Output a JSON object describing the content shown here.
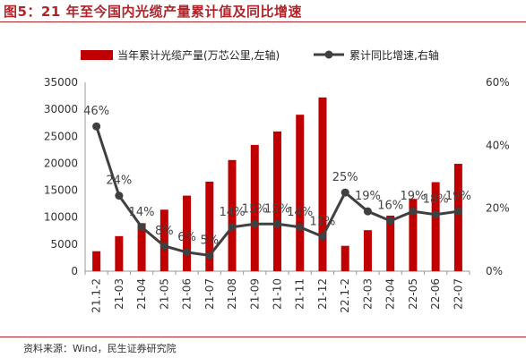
{
  "figure": {
    "title": "图5：21 年至今国内光缆产量累计值及同比增速",
    "source": "资料来源：Wind，民生证券研究院"
  },
  "colors": {
    "bar": "#c00000",
    "line": "#404040",
    "title": "#b0242a"
  },
  "chart_data": {
    "type": "bar",
    "categories": [
      "21.1-2",
      "21-03",
      "21-04",
      "21-05",
      "21-06",
      "21-07",
      "21-08",
      "21-09",
      "21-10",
      "21-11",
      "21-12",
      "22.1-2",
      "22-03",
      "22-04",
      "22-05",
      "22-06",
      "22-07"
    ],
    "series": [
      {
        "name": "当年累计光缆产量(万芯公里,左轴)",
        "type": "bar",
        "axis": "left",
        "values": [
          3700,
          6500,
          8900,
          11400,
          14000,
          16600,
          20600,
          23400,
          25900,
          29000,
          32200,
          4700,
          7600,
          10300,
          13400,
          16500,
          19900
        ]
      },
      {
        "name": "累计同比增速,右轴",
        "type": "line",
        "axis": "right",
        "values": [
          46,
          24,
          14,
          8,
          6,
          5,
          14,
          15,
          15,
          14,
          11,
          25,
          19,
          16,
          19,
          18,
          19
        ],
        "labels": [
          "46%",
          "24%",
          "14%",
          "8%",
          "6%",
          "5%",
          "14%",
          "15%",
          "15%",
          "14%",
          "11%",
          "25%",
          "19%",
          "16%",
          "19%",
          "18%",
          "19%"
        ]
      }
    ],
    "y_left": {
      "range": [
        0,
        35000
      ],
      "ticks": [
        "0",
        "5000",
        "10000",
        "15000",
        "20000",
        "25000",
        "30000",
        "35000"
      ]
    },
    "y_right": {
      "range": [
        0,
        60
      ],
      "ticks": [
        "0%",
        "20%",
        "40%",
        "60%"
      ]
    },
    "legend_position": "top",
    "grid": false
  }
}
